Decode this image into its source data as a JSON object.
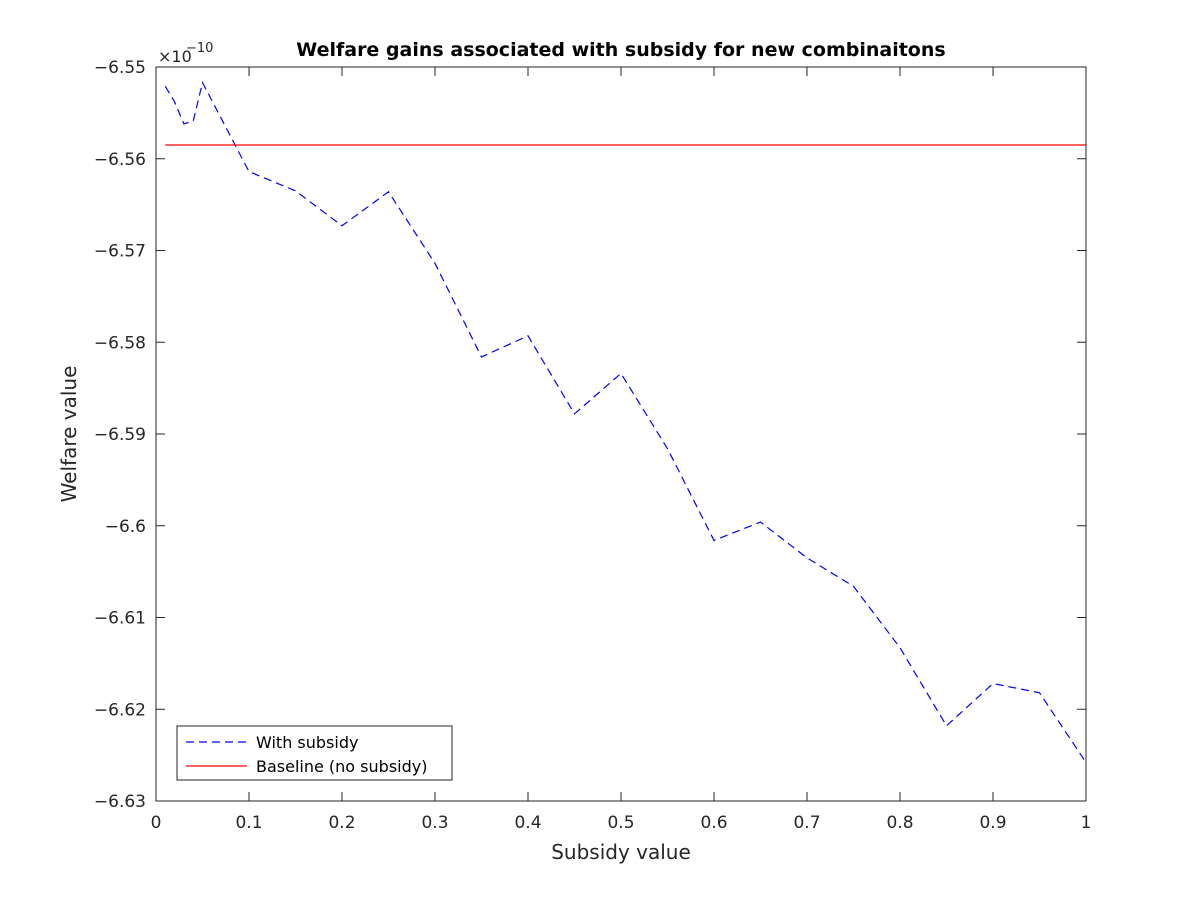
{
  "chart_data": {
    "type": "line",
    "title": "Welfare gains associated with subsidy for new combinaitons",
    "xlabel": "Subsidy value",
    "ylabel": "Welfare value",
    "y_exponent_base": "×10",
    "y_exponent_power": "−10",
    "xlim": [
      0,
      1
    ],
    "ylim": [
      -6.63,
      -6.55
    ],
    "x_ticks": [
      0,
      0.1,
      0.2,
      0.3,
      0.4,
      0.5,
      0.6,
      0.7,
      0.8,
      0.9,
      1
    ],
    "x_tick_labels": [
      "0",
      "0.1",
      "0.2",
      "0.3",
      "0.4",
      "0.5",
      "0.6",
      "0.7",
      "0.8",
      "0.9",
      "1"
    ],
    "y_ticks": [
      -6.55,
      -6.56,
      -6.57,
      -6.58,
      -6.59,
      -6.6,
      -6.61,
      -6.62,
      -6.63
    ],
    "y_tick_labels": [
      "−6.55",
      "−6.56",
      "−6.57",
      "−6.58",
      "−6.59",
      "−6.6",
      "−6.61",
      "−6.62",
      "−6.63"
    ],
    "grid": false,
    "legend_position": "bottom-left",
    "series": [
      {
        "name": "With subsidy",
        "color": "#0000ff",
        "line_style": "dashed",
        "x": [
          0.01,
          0.02,
          0.03,
          0.04,
          0.05,
          0.1,
          0.15,
          0.2,
          0.25,
          0.3,
          0.35,
          0.4,
          0.45,
          0.5,
          0.55,
          0.6,
          0.65,
          0.7,
          0.75,
          0.8,
          0.85,
          0.9,
          0.95,
          1.0
        ],
        "y": [
          -6.5521,
          -6.5538,
          -6.5562,
          -6.5559,
          -6.5517,
          -6.5614,
          -6.5635,
          -6.5673,
          -6.5636,
          -6.5714,
          -6.5816,
          -6.5793,
          -6.5878,
          -6.5834,
          -6.5916,
          -6.6016,
          -6.5996,
          -6.6035,
          -6.6066,
          -6.6133,
          -6.6218,
          -6.6172,
          -6.6182,
          -6.6258
        ]
      },
      {
        "name": "Baseline (no subsidy)",
        "color": "#ff0000",
        "line_style": "solid",
        "x": [
          0.01,
          1.0
        ],
        "y": [
          -6.5585,
          -6.5585
        ]
      }
    ]
  }
}
